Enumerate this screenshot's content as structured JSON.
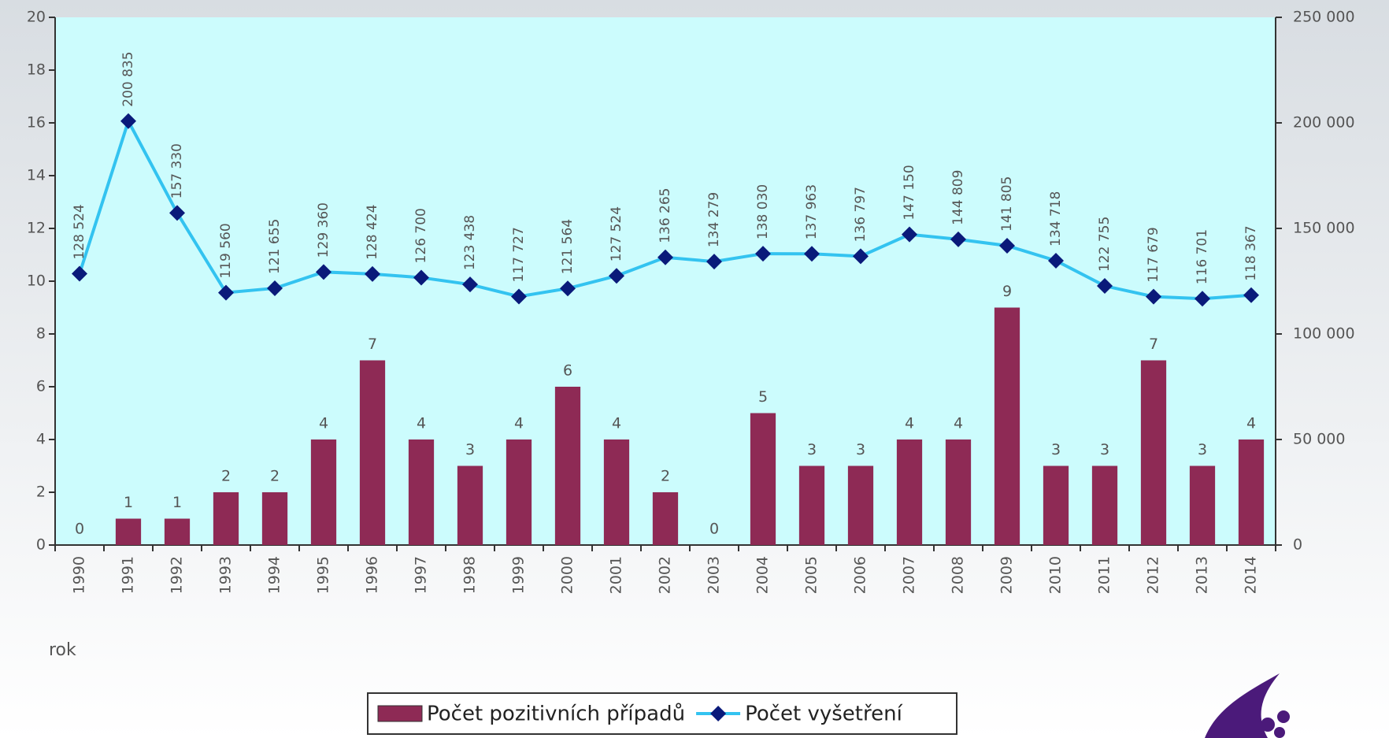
{
  "chart_data": {
    "type": "bar_line",
    "categories": [
      "1990",
      "1991",
      "1992",
      "1993",
      "1994",
      "1995",
      "1996",
      "1997",
      "1998",
      "1999",
      "2000",
      "2001",
      "2002",
      "2003",
      "2004",
      "2005",
      "2006",
      "2007",
      "2008",
      "2009",
      "2010",
      "2011",
      "2012",
      "2013",
      "2014"
    ],
    "xlabel": "rok",
    "series": [
      {
        "name": "Počet pozitivních případů",
        "type": "bar",
        "color": "#8e2a55",
        "axis": "y",
        "values": [
          0,
          1,
          1,
          2,
          2,
          4,
          7,
          4,
          3,
          4,
          6,
          4,
          2,
          0,
          5,
          3,
          3,
          4,
          4,
          9,
          3,
          3,
          7,
          3,
          4
        ]
      },
      {
        "name": "Počet vyšetření",
        "type": "line",
        "color": "#33c3f0",
        "marker_color": "#0a1a7a",
        "axis": "y2",
        "values": [
          128524,
          200835,
          157330,
          119560,
          121655,
          129360,
          128424,
          126700,
          123438,
          117727,
          121564,
          127524,
          136265,
          134279,
          138030,
          137963,
          136797,
          147150,
          144809,
          141805,
          134718,
          122755,
          117679,
          116701,
          118367
        ],
        "value_labels": [
          "128 524",
          "200 835",
          "157 330",
          "119 560",
          "121 655",
          "129 360",
          "128 424",
          "126 700",
          "123 438",
          "117 727",
          "121 564",
          "127 524",
          "136 265",
          "134 279",
          "138 030",
          "137 963",
          "136 797",
          "147 150",
          "144 809",
          "141 805",
          "134 718",
          "122 755",
          "117 679",
          "116 701",
          "118 367"
        ]
      }
    ],
    "ylim": [
      0,
      20
    ],
    "yticks": [
      0,
      2,
      4,
      6,
      8,
      10,
      12,
      14,
      16,
      18,
      20
    ],
    "y2lim": [
      0,
      250000
    ],
    "y2ticks": [
      0,
      {
        "value": 50000,
        "label": "50 000"
      },
      {
        "value": 100000,
        "label": "100 000"
      },
      {
        "value": 150000,
        "label": "150 000"
      },
      {
        "value": 200000,
        "label": "200 000"
      },
      {
        "value": 250000,
        "label": "250 000"
      }
    ],
    "legend": "bottom"
  }
}
